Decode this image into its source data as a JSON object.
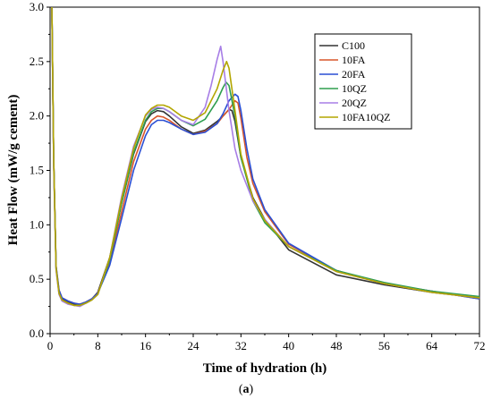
{
  "caption": {
    "open": "(",
    "letter": "a",
    "close": ")"
  },
  "chart_data": {
    "type": "line",
    "xlabel": "Time of hydration (h)",
    "ylabel": "Heat Flow (mW/g cement)",
    "xlim": [
      0,
      72
    ],
    "ylim": [
      0,
      3.0
    ],
    "xticks": [
      0,
      8,
      16,
      24,
      32,
      40,
      48,
      56,
      64,
      72
    ],
    "yticks": [
      "0.0",
      "0.5",
      "1.0",
      "1.5",
      "2.0",
      "2.5",
      "3.0"
    ],
    "grid": false,
    "legend_position": "top-right",
    "series": [
      {
        "name": "C100",
        "color": "#333333",
        "x": [
          0.3,
          0.6,
          1,
          1.5,
          2,
          3,
          4,
          5,
          6,
          7,
          8,
          10,
          12,
          14,
          16,
          17,
          18,
          19,
          20,
          22,
          24,
          26,
          28,
          29,
          30,
          30.5,
          31,
          32,
          34,
          36,
          40,
          48,
          56,
          64,
          72
        ],
        "y": [
          3.0,
          1.6,
          0.6,
          0.38,
          0.32,
          0.29,
          0.27,
          0.27,
          0.29,
          0.32,
          0.38,
          0.7,
          1.2,
          1.65,
          1.95,
          2.02,
          2.05,
          2.04,
          2.0,
          1.9,
          1.84,
          1.87,
          1.95,
          2.0,
          2.06,
          2.05,
          1.95,
          1.62,
          1.25,
          1.05,
          0.77,
          0.54,
          0.45,
          0.38,
          0.33
        ]
      },
      {
        "name": "10FA",
        "color": "#d9562a",
        "x": [
          0.3,
          0.6,
          1,
          1.5,
          2,
          3,
          4,
          5,
          6,
          7,
          8,
          10,
          12,
          14,
          16,
          17,
          18,
          19,
          20,
          22,
          24,
          26,
          28,
          29,
          30,
          31,
          31.5,
          32,
          33,
          34,
          36,
          40,
          48,
          56,
          64,
          72
        ],
        "y": [
          3.0,
          1.6,
          0.62,
          0.4,
          0.33,
          0.3,
          0.28,
          0.27,
          0.29,
          0.32,
          0.37,
          0.66,
          1.12,
          1.58,
          1.88,
          1.96,
          2.0,
          1.99,
          1.96,
          1.88,
          1.83,
          1.86,
          1.93,
          2.0,
          2.06,
          2.14,
          2.12,
          1.98,
          1.62,
          1.38,
          1.12,
          0.82,
          0.58,
          0.46,
          0.39,
          0.32
        ]
      },
      {
        "name": "20FA",
        "color": "#2a4fd4",
        "x": [
          0.3,
          0.6,
          1,
          1.5,
          2,
          3,
          4,
          5,
          6,
          7,
          8,
          10,
          12,
          14,
          16,
          17,
          18,
          19,
          20,
          22,
          24,
          26,
          28,
          29,
          30,
          31,
          31.5,
          32,
          33,
          34,
          36,
          40,
          48,
          56,
          64,
          72
        ],
        "y": [
          3.0,
          1.6,
          0.62,
          0.4,
          0.33,
          0.3,
          0.28,
          0.27,
          0.29,
          0.32,
          0.37,
          0.63,
          1.06,
          1.5,
          1.82,
          1.92,
          1.96,
          1.96,
          1.94,
          1.88,
          1.83,
          1.85,
          1.93,
          2.02,
          2.14,
          2.2,
          2.18,
          2.05,
          1.7,
          1.42,
          1.14,
          0.83,
          0.58,
          0.46,
          0.39,
          0.32
        ]
      },
      {
        "name": "10QZ",
        "color": "#2e9e4f",
        "x": [
          0.3,
          0.6,
          1,
          1.5,
          2,
          3,
          4,
          5,
          6,
          7,
          8,
          10,
          12,
          14,
          16,
          17,
          18,
          19,
          20,
          22,
          24,
          26,
          28,
          29,
          29.5,
          30,
          31,
          32,
          34,
          36,
          40,
          48,
          56,
          64,
          72
        ],
        "y": [
          3.0,
          1.6,
          0.6,
          0.37,
          0.31,
          0.28,
          0.26,
          0.26,
          0.28,
          0.31,
          0.36,
          0.68,
          1.2,
          1.66,
          1.96,
          2.04,
          2.07,
          2.07,
          2.04,
          1.96,
          1.91,
          1.97,
          2.14,
          2.26,
          2.31,
          2.28,
          2.0,
          1.62,
          1.22,
          1.02,
          0.8,
          0.58,
          0.47,
          0.39,
          0.34
        ]
      },
      {
        "name": "20QZ",
        "color": "#a77ee6",
        "x": [
          0.3,
          0.6,
          1,
          1.5,
          2,
          3,
          4,
          5,
          6,
          7,
          8,
          10,
          12,
          14,
          16,
          17,
          18,
          19,
          20,
          22,
          24,
          26,
          27,
          28,
          28.6,
          29,
          30,
          31,
          32,
          34,
          36,
          40,
          48,
          56,
          64,
          72
        ],
        "y": [
          3.0,
          1.55,
          0.58,
          0.36,
          0.3,
          0.27,
          0.26,
          0.25,
          0.28,
          0.31,
          0.36,
          0.7,
          1.26,
          1.72,
          2.0,
          2.06,
          2.08,
          2.07,
          2.04,
          1.96,
          1.92,
          2.08,
          2.28,
          2.52,
          2.64,
          2.5,
          2.05,
          1.7,
          1.5,
          1.22,
          1.05,
          0.8,
          0.57,
          0.46,
          0.38,
          0.33
        ]
      },
      {
        "name": "10FA10QZ",
        "color": "#b3a600",
        "x": [
          0.3,
          0.6,
          1,
          1.5,
          2,
          3,
          4,
          5,
          6,
          7,
          8,
          10,
          12,
          14,
          16,
          17,
          18,
          19,
          20,
          22,
          24,
          26,
          28,
          29,
          29.6,
          30,
          31,
          32,
          34,
          36,
          40,
          48,
          56,
          64,
          72
        ],
        "y": [
          3.0,
          1.6,
          0.6,
          0.37,
          0.31,
          0.28,
          0.26,
          0.26,
          0.28,
          0.31,
          0.36,
          0.7,
          1.24,
          1.7,
          2.01,
          2.07,
          2.1,
          2.1,
          2.08,
          2.0,
          1.96,
          2.03,
          2.25,
          2.42,
          2.5,
          2.44,
          2.05,
          1.65,
          1.24,
          1.04,
          0.8,
          0.57,
          0.46,
          0.38,
          0.33
        ]
      }
    ]
  }
}
